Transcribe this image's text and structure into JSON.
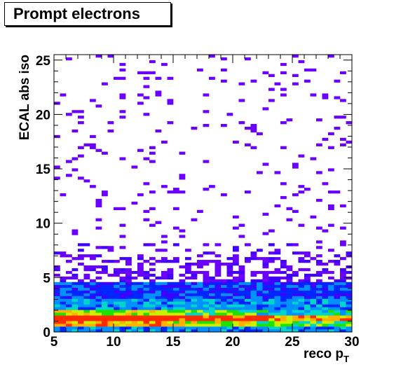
{
  "title": "Prompt electrons",
  "chart_data": {
    "type": "heatmap",
    "title": "Prompt electrons",
    "xlabel": "reco p",
    "xlabel_sub": "T",
    "ylabel": "ECAL abs iso",
    "xlim": [
      5,
      30
    ],
    "ylim": [
      0,
      25.5
    ],
    "x_ticks": [
      "5",
      "10",
      "15",
      "20",
      "25",
      "30"
    ],
    "y_ticks": [
      "0",
      "5",
      "10",
      "15",
      "20",
      "25"
    ],
    "x_bins": 50,
    "y_bins": 100,
    "description_palette": [
      "#6a00ff",
      "#3f00ff",
      "#0026ff",
      "#0090ff",
      "#00d6c8",
      "#20e000",
      "#c8f000",
      "#ffb000",
      "#ff2a00"
    ],
    "density_profile": [
      {
        "y_range": [
          0,
          0.5
        ],
        "level": 3
      },
      {
        "y_range": [
          0.5,
          1.0
        ],
        "level": 6
      },
      {
        "y_range": [
          1.0,
          1.5
        ],
        "level": 8
      },
      {
        "y_range": [
          1.5,
          2.0
        ],
        "level": 5
      },
      {
        "y_range": [
          2.0,
          3.0
        ],
        "level": 3
      },
      {
        "y_range": [
          3.0,
          4.5
        ],
        "level": 2
      },
      {
        "y_range": [
          4.5,
          8.0
        ],
        "level": 1
      },
      {
        "y_range": [
          8.0,
          25.5
        ],
        "level": 0
      }
    ],
    "grid": false
  }
}
